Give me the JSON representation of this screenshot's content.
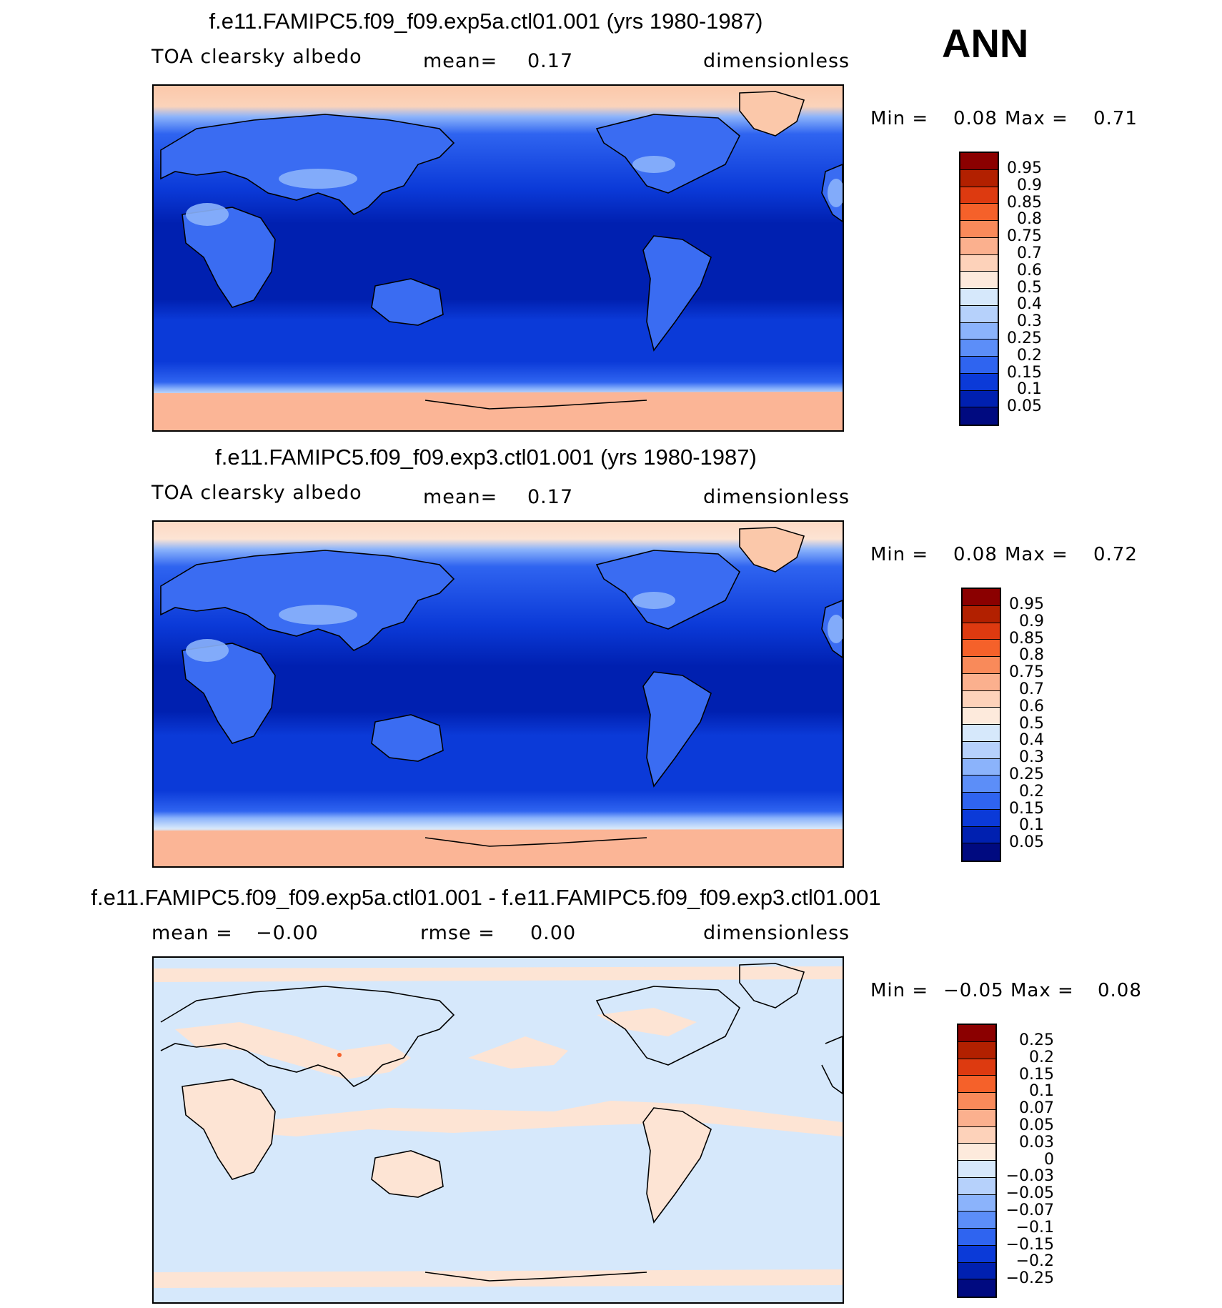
{
  "season": "ANN",
  "panels": [
    {
      "title": "f.e11.FAMIPC5.f09_f09.exp5a.ctl01.001 (yrs 1980-1987)",
      "variable": "TOA clearsky albedo",
      "mean_label": "mean=",
      "mean_value": "0.17",
      "units": "dimensionless",
      "min_label": "Min =",
      "min_value": "0.08",
      "max_label": "Max =",
      "max_value": "0.71",
      "colorbar": {
        "labels": [
          "0.95",
          "0.9",
          "0.85",
          "0.8",
          "0.75",
          "0.7",
          "0.6",
          "0.5",
          "0.4",
          "0.3",
          "0.25",
          "0.2",
          "0.15",
          "0.1",
          "0.05"
        ],
        "colors_top_to_bottom": [
          "#8b0000",
          "#b22000",
          "#dd3a10",
          "#f5612a",
          "#f98a5a",
          "#fbb08e",
          "#fdd2ba",
          "#fdeadc",
          "#d6e8fb",
          "#b6d1fb",
          "#8bb3fb",
          "#5c8ef8",
          "#2f64f0",
          "#0b3ad8",
          "#0020b0",
          "#000a80"
        ]
      },
      "legend_labels_ordered": [
        "0.05",
        "0.1",
        "0.15",
        "0.2",
        "0.25",
        "0.3",
        "0.4",
        "0.5",
        "0.6",
        "0.7",
        "0.75",
        "0.8",
        "0.85",
        "0.9",
        "0.95"
      ]
    },
    {
      "title": "f.e11.FAMIPC5.f09_f09.exp3.ctl01.001 (yrs 1980-1987)",
      "variable": "TOA clearsky albedo",
      "mean_label": "mean=",
      "mean_value": "0.17",
      "units": "dimensionless",
      "min_label": "Min =",
      "min_value": "0.08",
      "max_label": "Max =",
      "max_value": "0.72",
      "colorbar": {
        "labels": [
          "0.95",
          "0.9",
          "0.85",
          "0.8",
          "0.75",
          "0.7",
          "0.6",
          "0.5",
          "0.4",
          "0.3",
          "0.25",
          "0.2",
          "0.15",
          "0.1",
          "0.05"
        ],
        "colors_top_to_bottom": [
          "#8b0000",
          "#b22000",
          "#dd3a10",
          "#f5612a",
          "#f98a5a",
          "#fbb08e",
          "#fdd2ba",
          "#fdeadc",
          "#d6e8fb",
          "#b6d1fb",
          "#8bb3fb",
          "#5c8ef8",
          "#2f64f0",
          "#0b3ad8",
          "#0020b0",
          "#000a80"
        ]
      }
    },
    {
      "title": "f.e11.FAMIPC5.f09_f09.exp5a.ctl01.001 - f.e11.FAMIPC5.f09_f09.exp3.ctl01.001",
      "mean_label": "mean =",
      "mean_value": "−0.00",
      "rmse_label": "rmse =",
      "rmse_value": "0.00",
      "units": "dimensionless",
      "min_label": "Min =",
      "min_value": "−0.05",
      "max_label": "Max =",
      "max_value": "0.08",
      "colorbar": {
        "labels": [
          "0.25",
          "0.2",
          "0.15",
          "0.1",
          "0.07",
          "0.05",
          "0.03",
          "0",
          "−0.03",
          "−0.05",
          "−0.07",
          "−0.1",
          "−0.15",
          "−0.2",
          "−0.25"
        ],
        "colors_top_to_bottom": [
          "#8b0000",
          "#b22000",
          "#dd3a10",
          "#f5612a",
          "#f98a5a",
          "#fbb08e",
          "#fdd2ba",
          "#fdeadc",
          "#d6e8fb",
          "#b6d1fb",
          "#8bb3fb",
          "#5c8ef8",
          "#2f64f0",
          "#0b3ad8",
          "#0020b0",
          "#000a80"
        ]
      }
    }
  ]
}
